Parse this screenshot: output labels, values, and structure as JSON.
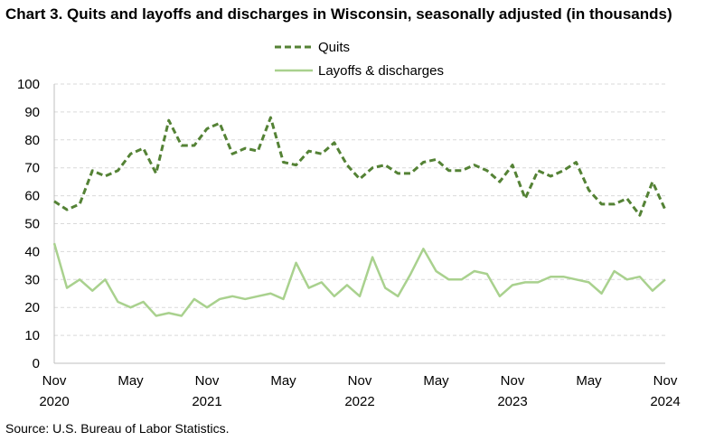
{
  "chart_data": {
    "type": "line",
    "title": "Chart 3. Quits and layoffs and discharges in Wisconsin, seasonally adjusted (in thousands)",
    "source": "Source: U.S. Bureau of Labor Statistics.",
    "ylim": [
      0,
      100
    ],
    "yticks": [
      0,
      10,
      20,
      30,
      40,
      50,
      60,
      70,
      80,
      90,
      100
    ],
    "grid": true,
    "legend_position": "top-center",
    "x_tick_labels": [
      {
        "index": 0,
        "month": "Nov",
        "year": "2020"
      },
      {
        "index": 6,
        "month": "May",
        "year": ""
      },
      {
        "index": 12,
        "month": "Nov",
        "year": "2021"
      },
      {
        "index": 18,
        "month": "May",
        "year": ""
      },
      {
        "index": 24,
        "month": "Nov",
        "year": "2022"
      },
      {
        "index": 30,
        "month": "May",
        "year": ""
      },
      {
        "index": 36,
        "month": "Nov",
        "year": "2023"
      },
      {
        "index": 42,
        "month": "May",
        "year": ""
      },
      {
        "index": 48,
        "month": "Nov",
        "year": "2024"
      }
    ],
    "series": [
      {
        "name": "Quits",
        "color": "#548235",
        "style": "dashed",
        "values": [
          58,
          55,
          57,
          69,
          67,
          69,
          75,
          77,
          68,
          87,
          78,
          78,
          84,
          86,
          75,
          77,
          76,
          88,
          72,
          71,
          76,
          75,
          79,
          71,
          66,
          70,
          71,
          68,
          68,
          72,
          73,
          69,
          69,
          71,
          69,
          65,
          71,
          59,
          69,
          67,
          69,
          72,
          62,
          57,
          57,
          59,
          53,
          65,
          55
        ]
      },
      {
        "name": "Layoffs & discharges",
        "color": "#a9d18e",
        "style": "solid",
        "values": [
          43,
          27,
          30,
          26,
          30,
          22,
          20,
          22,
          17,
          18,
          17,
          23,
          20,
          23,
          24,
          23,
          24,
          25,
          23,
          36,
          27,
          29,
          24,
          28,
          24,
          38,
          27,
          24,
          32,
          41,
          33,
          30,
          30,
          33,
          32,
          24,
          28,
          29,
          29,
          31,
          31,
          30,
          29,
          25,
          33,
          30,
          31,
          26,
          30
        ]
      }
    ]
  }
}
